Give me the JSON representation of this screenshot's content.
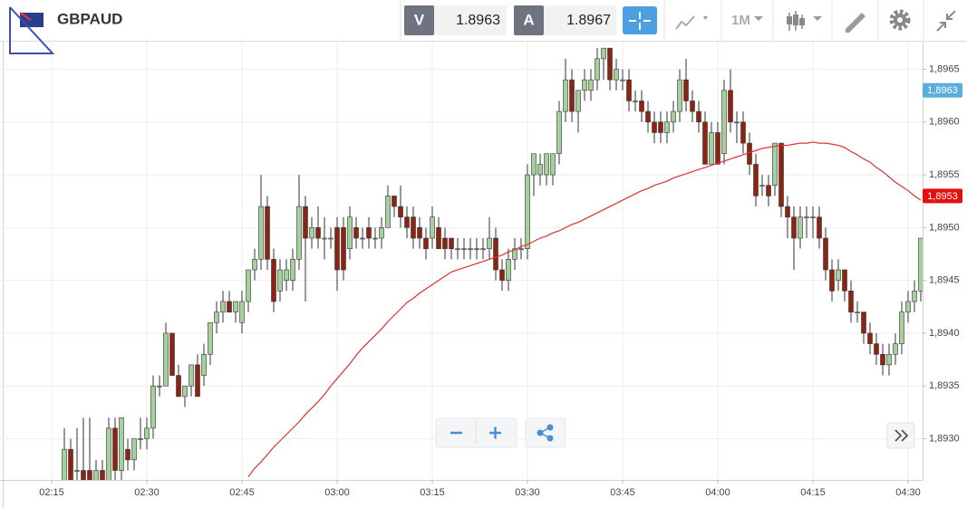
{
  "header": {
    "symbol": "GBPAUD",
    "bid_label": "V",
    "bid": "1.8963",
    "ask_label": "A",
    "ask": "1.8967",
    "timeframe": "1M"
  },
  "chart_data": {
    "type": "candlestick",
    "categories": [
      "02:15",
      null,
      null,
      null,
      null,
      null,
      null,
      null,
      null,
      null,
      null,
      null,
      null,
      null,
      null,
      "02:30",
      null,
      null,
      null,
      null,
      null,
      null,
      null,
      null,
      null,
      null,
      null,
      null,
      null,
      null,
      "02:45",
      null,
      null,
      null,
      null,
      null,
      null,
      null,
      null,
      null,
      null,
      null,
      null,
      null,
      null,
      "03:00",
      null,
      null,
      null,
      null,
      null,
      null,
      null,
      null,
      null,
      null,
      null,
      null,
      null,
      null,
      "03:15",
      null,
      null,
      null,
      null,
      null,
      null,
      null,
      null,
      null,
      null,
      null,
      null,
      null,
      null,
      "03:30",
      null,
      null,
      null,
      null,
      null,
      null,
      null,
      null,
      null,
      null,
      null,
      null,
      null,
      null,
      "03:45",
      null,
      null,
      null,
      null,
      null,
      null,
      null,
      null,
      null,
      null,
      null,
      null,
      null,
      null,
      "04:00",
      null,
      null,
      null,
      null,
      null,
      null,
      null,
      null,
      null,
      null,
      null,
      null,
      null,
      null,
      "04:15",
      null,
      null,
      null,
      null,
      null,
      null,
      null,
      null,
      null,
      null,
      null,
      null,
      null,
      null,
      "04:30",
      null,
      null
    ],
    "open": [
      null,
      null,
      1.8926,
      1.8929,
      1.8927,
      1.8927,
      1.8927,
      1.8926,
      1.8927,
      1.8926,
      1.8931,
      1.8927,
      1.8929,
      1.8928,
      1.893,
      1.893,
      1.8931,
      1.8935,
      1.8935,
      1.894,
      1.8936,
      1.8934,
      1.8935,
      1.8937,
      1.8936,
      1.8938,
      1.8941,
      1.8942,
      1.8943,
      1.8942,
      1.8941,
      1.8943,
      1.8946,
      1.8947,
      1.8952,
      1.8947,
      1.8944,
      1.8945,
      1.8945,
      1.8947,
      1.8952,
      1.8949,
      1.895,
      1.8949,
      1.8949,
      1.895,
      1.895,
      1.8948,
      1.895,
      1.8949,
      1.895,
      1.8949,
      1.8949,
      1.895,
      1.8953,
      1.8952,
      1.8951,
      1.8951,
      1.895,
      1.8949,
      1.8949,
      1.895,
      1.8949,
      1.8949,
      1.8948,
      1.8948,
      1.8948,
      1.8948,
      1.8948,
      1.8948,
      1.8949,
      1.8946,
      1.8945,
      1.8947,
      1.8948,
      1.8948,
      1.8955,
      1.8955,
      1.8955,
      1.8955,
      1.8957,
      1.8961,
      1.8964,
      1.8961,
      1.8963,
      1.8963,
      1.8964,
      1.8966,
      1.8967,
      1.8964,
      1.8964,
      1.8964,
      1.8962,
      1.8962,
      1.8961,
      1.896,
      1.896,
      1.8959,
      1.896,
      1.8961,
      1.8964,
      1.8962,
      1.8961,
      1.896,
      1.8956,
      1.8959,
      1.8957,
      1.8963,
      1.896,
      1.896,
      1.8958,
      1.8956,
      1.8954,
      1.8954,
      1.8954,
      1.8958,
      1.8952,
      1.8951,
      1.8949,
      1.8951,
      1.8951,
      1.8951,
      1.8949,
      1.8946,
      1.8945,
      1.8946,
      1.8944,
      1.8942,
      1.8942,
      1.894,
      1.8939,
      1.8938,
      1.8937,
      1.8938,
      1.8939,
      1.8942,
      1.8943,
      1.8944
    ],
    "high": [
      null,
      null,
      1.8931,
      1.893,
      1.8931,
      1.8932,
      1.8932,
      1.8928,
      1.8928,
      1.8932,
      1.8932,
      1.8932,
      1.893,
      1.893,
      1.8932,
      1.8932,
      1.8936,
      1.8936,
      1.8941,
      1.894,
      1.8937,
      1.8935,
      1.8937,
      1.8938,
      1.8939,
      1.8941,
      1.8943,
      1.8944,
      1.8944,
      1.8943,
      1.8944,
      1.8946,
      1.8948,
      1.8955,
      1.8953,
      1.8948,
      1.8947,
      1.8947,
      1.8948,
      1.8955,
      1.8953,
      1.8951,
      1.8952,
      1.8951,
      1.895,
      1.8951,
      1.8951,
      1.8952,
      1.8951,
      1.895,
      1.8951,
      1.895,
      1.8951,
      1.8954,
      1.8953,
      1.8954,
      1.8952,
      1.8952,
      1.8951,
      1.895,
      1.8952,
      1.8951,
      1.895,
      1.8949,
      1.8949,
      1.8949,
      1.8949,
      1.8949,
      1.8949,
      1.8951,
      1.895,
      1.8947,
      1.8948,
      1.8949,
      1.8949,
      1.8956,
      1.8957,
      1.8957,
      1.8957,
      1.8957,
      1.8962,
      1.8966,
      1.8965,
      1.8963,
      1.8965,
      1.8965,
      1.8967,
      1.8967,
      1.8967,
      1.8966,
      1.8965,
      1.8965,
      1.8963,
      1.8963,
      1.8962,
      1.8961,
      1.8961,
      1.8961,
      1.8962,
      1.8965,
      1.8966,
      1.8963,
      1.8962,
      1.8961,
      1.896,
      1.896,
      1.8964,
      1.8965,
      1.8961,
      1.8961,
      1.8959,
      1.8957,
      1.8955,
      1.8955,
      1.8958,
      1.8958,
      1.8953,
      1.8952,
      1.8952,
      1.8952,
      1.8952,
      1.8952,
      1.895,
      1.8947,
      1.8947,
      1.8946,
      1.8945,
      1.8943,
      1.8942,
      1.8941,
      1.894,
      1.8939,
      1.8939,
      1.894,
      1.8943,
      1.8944,
      1.8945,
      1.8949
    ],
    "low": [
      null,
      null,
      1.8925,
      1.8925,
      1.8925,
      1.8925,
      1.8925,
      1.8925,
      1.8925,
      1.8925,
      1.8926,
      1.8926,
      1.8927,
      1.8927,
      1.8929,
      1.8929,
      1.893,
      1.8934,
      1.8935,
      1.8936,
      1.8934,
      1.8933,
      1.8934,
      1.8934,
      1.8935,
      1.8937,
      1.894,
      1.8941,
      1.8942,
      1.8941,
      1.894,
      1.8942,
      1.8945,
      1.8946,
      1.8946,
      1.8942,
      1.8943,
      1.8944,
      1.8944,
      1.8946,
      1.8943,
      1.8948,
      1.8948,
      1.8947,
      1.8948,
      1.8944,
      1.8945,
      1.8947,
      1.8948,
      1.8948,
      1.8948,
      1.8948,
      1.8948,
      1.895,
      1.8951,
      1.895,
      1.8949,
      1.8948,
      1.8948,
      1.8947,
      1.8948,
      1.8948,
      1.8947,
      1.8947,
      1.8947,
      1.8947,
      1.8947,
      1.8947,
      1.8947,
      1.8947,
      1.8945,
      1.8944,
      1.8944,
      1.8946,
      1.8947,
      1.8947,
      1.8953,
      1.8954,
      1.8954,
      1.8954,
      1.8956,
      1.896,
      1.896,
      1.8959,
      1.8962,
      1.8962,
      1.8963,
      1.8964,
      1.8963,
      1.8963,
      1.8963,
      1.8961,
      1.8961,
      1.896,
      1.8959,
      1.8958,
      1.8958,
      1.8958,
      1.8959,
      1.896,
      1.8961,
      1.896,
      1.8959,
      1.8956,
      1.8956,
      1.8956,
      1.8956,
      1.8959,
      1.8958,
      1.8957,
      1.8955,
      1.8952,
      1.8953,
      1.8952,
      1.8953,
      1.8951,
      1.8949,
      1.8946,
      1.8948,
      1.8949,
      1.8949,
      1.8948,
      1.8945,
      1.8943,
      1.8944,
      1.8943,
      1.8941,
      1.8941,
      1.8939,
      1.8938,
      1.8937,
      1.8936,
      1.8936,
      1.8937,
      1.8938,
      1.8941,
      1.8942,
      1.8943
    ],
    "close": [
      null,
      null,
      1.8929,
      1.8926,
      1.8927,
      1.8926,
      1.8926,
      1.8927,
      1.8926,
      1.8931,
      1.8927,
      1.8932,
      1.8928,
      1.893,
      1.893,
      1.8931,
      1.8935,
      1.8935,
      1.894,
      1.8936,
      1.8934,
      1.8935,
      1.8937,
      1.8934,
      1.8938,
      1.8941,
      1.8942,
      1.8943,
      1.8942,
      1.8943,
      1.8943,
      1.8946,
      1.8947,
      1.8952,
      1.8947,
      1.8943,
      1.8946,
      1.8946,
      1.8947,
      1.8952,
      1.8949,
      1.895,
      1.8949,
      1.8949,
      1.8949,
      1.8946,
      1.8946,
      1.8951,
      1.8949,
      1.8949,
      1.8949,
      1.8949,
      1.895,
      1.8953,
      1.8952,
      1.8951,
      1.895,
      1.8949,
      1.8949,
      1.8948,
      1.8951,
      1.8948,
      1.8948,
      1.8948,
      1.8948,
      1.8948,
      1.8948,
      1.8948,
      1.8948,
      1.8949,
      1.8946,
      1.8945,
      1.8947,
      1.8948,
      1.8948,
      1.8955,
      1.8957,
      1.8956,
      1.8957,
      1.8957,
      1.8961,
      1.8964,
      1.8961,
      1.8963,
      1.8964,
      1.8964,
      1.8966,
      1.8967,
      1.8964,
      1.8965,
      1.8964,
      1.8962,
      1.8962,
      1.8961,
      1.896,
      1.8959,
      1.8959,
      1.896,
      1.8961,
      1.8964,
      1.8962,
      1.8961,
      1.896,
      1.8956,
      1.8959,
      1.8956,
      1.8963,
      1.896,
      1.896,
      1.8958,
      1.8956,
      1.8953,
      1.8954,
      1.8953,
      1.8958,
      1.8952,
      1.8951,
      1.8949,
      1.8951,
      1.8951,
      1.8951,
      1.8949,
      1.8946,
      1.8944,
      1.8946,
      1.8944,
      1.8942,
      1.8942,
      1.894,
      1.8939,
      1.8938,
      1.8937,
      1.8938,
      1.8939,
      1.8942,
      1.8943,
      1.8944,
      1.8949
    ],
    "up_color": "#a6cf9e",
    "down_color": "#8c2414",
    "ma": {
      "color": "#e03030",
      "values": [
        null,
        null,
        null,
        null,
        null,
        null,
        null,
        null,
        null,
        null,
        null,
        null,
        null,
        null,
        null,
        null,
        null,
        null,
        null,
        null,
        null,
        null,
        null,
        null,
        null,
        null,
        null,
        null,
        null,
        null,
        null,
        1.89264,
        1.89272,
        1.89278,
        1.89285,
        1.89292,
        1.89298,
        1.89304,
        1.8931,
        1.89316,
        1.89323,
        1.89329,
        1.89335,
        1.89342,
        1.8935,
        1.89357,
        1.89364,
        1.89371,
        1.89379,
        1.89386,
        1.89392,
        1.89398,
        1.89404,
        1.89411,
        1.89417,
        1.89423,
        1.89429,
        1.89433,
        1.89438,
        1.89442,
        1.89446,
        1.8945,
        1.89454,
        1.89458,
        1.8946,
        1.89462,
        1.89464,
        1.89466,
        1.89468,
        1.8947,
        1.89472,
        1.89474,
        1.89477,
        1.89479,
        1.89482,
        1.89484,
        1.89487,
        1.8949,
        1.89492,
        1.89495,
        1.89497,
        1.895,
        1.89503,
        1.89505,
        1.89508,
        1.89511,
        1.89514,
        1.89517,
        1.8952,
        1.89523,
        1.89526,
        1.89529,
        1.89532,
        1.89535,
        1.89537,
        1.8954,
        1.89542,
        1.89544,
        1.89547,
        1.89549,
        1.89551,
        1.89553,
        1.89555,
        1.89557,
        1.89559,
        1.89561,
        1.89563,
        1.89565,
        1.89567,
        1.89569,
        1.89571,
        1.89573,
        1.89575,
        1.89576,
        1.89577,
        1.89578,
        1.89578,
        1.89579,
        1.8958,
        1.8958,
        1.89581,
        1.8958,
        1.8958,
        1.89579,
        1.89578,
        1.89576,
        1.89572,
        1.89569,
        1.89565,
        1.89562,
        1.89557,
        1.89553,
        1.89548,
        1.89543,
        1.89539,
        1.89535,
        1.8953,
        1.89526
      ]
    },
    "ylim": [
      1.89261,
      1.89677
    ],
    "yticks": [
      {
        "value": 1.893,
        "label": "1,8930"
      },
      {
        "value": 1.8935,
        "label": "1,8935"
      },
      {
        "value": 1.894,
        "label": "1,8940"
      },
      {
        "value": 1.8945,
        "label": "1,8945"
      },
      {
        "value": 1.895,
        "label": "1,8950"
      },
      {
        "value": 1.8955,
        "label": "1,8955"
      },
      {
        "value": 1.896,
        "label": "1,8960"
      },
      {
        "value": 1.8965,
        "label": "1,8965"
      }
    ],
    "price_markers": [
      {
        "value": 1.8963,
        "label": "1,8963",
        "color": "#5aaedc"
      },
      {
        "value": 1.8953,
        "label": "1,8953",
        "color": "#e41010"
      }
    ],
    "grid": true
  }
}
